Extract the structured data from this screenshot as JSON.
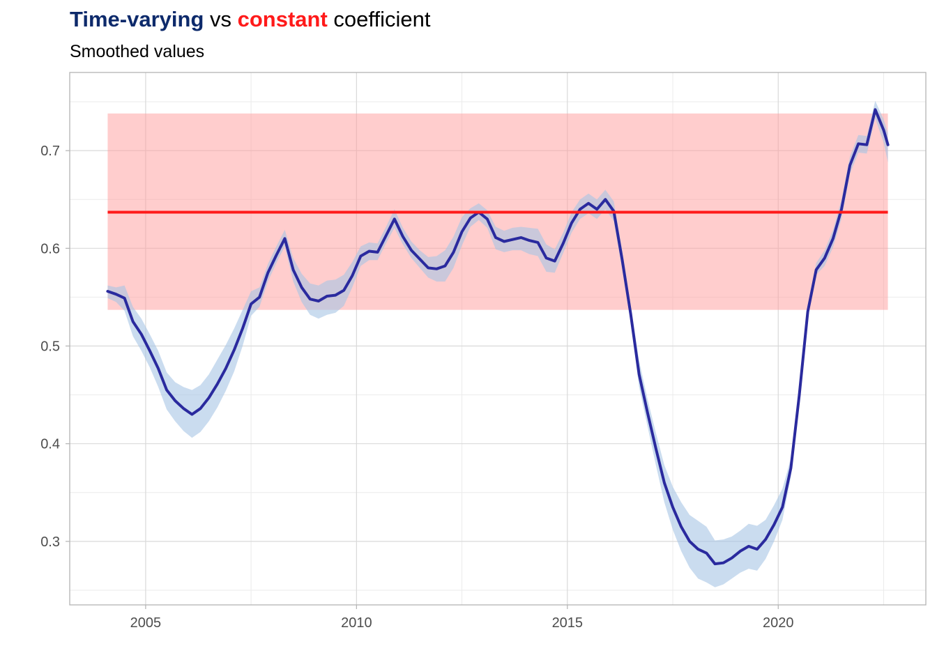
{
  "title": {
    "part1": "Time-varying",
    "part2": " vs ",
    "part3": "constant",
    "part4": " coefficient"
  },
  "subtitle": "Smoothed values",
  "colors": {
    "time_varying": "#0d2a6b",
    "constant": "#ff1a1a",
    "line": "#2a2a9e",
    "band_tv": "#a7c4e4",
    "band_const": "#ff9b9b"
  },
  "chart_data": {
    "type": "line",
    "title": "Time-varying vs constant coefficient",
    "subtitle": "Smoothed values",
    "xlabel": "",
    "ylabel": "",
    "xlim": [
      2003.2,
      2023.5
    ],
    "ylim": [
      0.235,
      0.78
    ],
    "x_ticks": [
      2005,
      2010,
      2015,
      2020
    ],
    "y_ticks": [
      0.3,
      0.4,
      0.5,
      0.6,
      0.7
    ],
    "grid": true,
    "constant": {
      "value": 0.637,
      "lower": 0.537,
      "upper": 0.738,
      "x_start": 2004.1,
      "x_end": 2022.6
    },
    "series": [
      {
        "x": [
          2004.1,
          2004.3,
          2004.5,
          2004.7,
          2004.9,
          2005.1,
          2005.3,
          2005.5,
          2005.7,
          2005.9,
          2006.1,
          2006.3,
          2006.5,
          2006.7,
          2006.9,
          2007.1,
          2007.3,
          2007.5,
          2007.7,
          2007.9,
          2008.1,
          2008.3,
          2008.5,
          2008.7,
          2008.9,
          2009.1,
          2009.3,
          2009.5,
          2009.7,
          2009.9,
          2010.1,
          2010.3,
          2010.5,
          2010.7,
          2010.9,
          2011.1,
          2011.3,
          2011.5,
          2011.7,
          2011.9,
          2012.1,
          2012.3,
          2012.5,
          2012.7,
          2012.9,
          2013.1,
          2013.3,
          2013.5,
          2013.7,
          2013.9,
          2014.1,
          2014.3,
          2014.5,
          2014.7,
          2014.9,
          2015.1,
          2015.3,
          2015.5,
          2015.7,
          2015.9,
          2016.1,
          2016.3,
          2016.5,
          2016.7,
          2016.9,
          2017.1,
          2017.3,
          2017.5,
          2017.7,
          2017.9,
          2018.1,
          2018.3,
          2018.5,
          2018.7,
          2018.9,
          2019.1,
          2019.3,
          2019.5,
          2019.7,
          2019.9,
          2020.1,
          2020.3,
          2020.5,
          2020.7,
          2020.9,
          2021.1,
          2021.3,
          2021.5,
          2021.7,
          2021.9,
          2022.1,
          2022.3,
          2022.5,
          2022.6
        ],
        "values": [
          0.556,
          0.553,
          0.549,
          0.525,
          0.512,
          0.495,
          0.477,
          0.455,
          0.444,
          0.436,
          0.43,
          0.436,
          0.447,
          0.461,
          0.477,
          0.496,
          0.518,
          0.543,
          0.55,
          0.575,
          0.593,
          0.61,
          0.578,
          0.56,
          0.548,
          0.546,
          0.551,
          0.552,
          0.557,
          0.572,
          0.592,
          0.597,
          0.596,
          0.613,
          0.63,
          0.612,
          0.598,
          0.589,
          0.58,
          0.579,
          0.582,
          0.596,
          0.617,
          0.631,
          0.637,
          0.63,
          0.611,
          0.607,
          0.609,
          0.611,
          0.608,
          0.606,
          0.59,
          0.587,
          0.605,
          0.626,
          0.64,
          0.646,
          0.64,
          0.65,
          0.638,
          0.588,
          0.533,
          0.471,
          0.432,
          0.395,
          0.36,
          0.335,
          0.315,
          0.3,
          0.292,
          0.288,
          0.277,
          0.278,
          0.283,
          0.29,
          0.295,
          0.292,
          0.302,
          0.317,
          0.335,
          0.375,
          0.45,
          0.535,
          0.578,
          0.59,
          0.61,
          0.64,
          0.685,
          0.707,
          0.706,
          0.742,
          0.721,
          0.706
        ],
        "lower": [
          0.549,
          0.545,
          0.536,
          0.51,
          0.495,
          0.478,
          0.458,
          0.435,
          0.423,
          0.413,
          0.406,
          0.412,
          0.423,
          0.437,
          0.454,
          0.474,
          0.5,
          0.531,
          0.54,
          0.566,
          0.585,
          0.602,
          0.566,
          0.545,
          0.532,
          0.528,
          0.532,
          0.534,
          0.541,
          0.56,
          0.582,
          0.588,
          0.588,
          0.605,
          0.621,
          0.604,
          0.59,
          0.58,
          0.57,
          0.566,
          0.566,
          0.58,
          0.603,
          0.622,
          0.629,
          0.621,
          0.599,
          0.596,
          0.598,
          0.598,
          0.594,
          0.592,
          0.576,
          0.575,
          0.595,
          0.616,
          0.63,
          0.636,
          0.63,
          0.64,
          0.628,
          0.578,
          0.525,
          0.458,
          0.418,
          0.378,
          0.34,
          0.312,
          0.29,
          0.273,
          0.262,
          0.258,
          0.253,
          0.256,
          0.262,
          0.268,
          0.272,
          0.27,
          0.282,
          0.3,
          0.322,
          0.366,
          0.444,
          0.53,
          0.573,
          0.582,
          0.601,
          0.63,
          0.676,
          0.698,
          0.697,
          0.733,
          0.708,
          0.688
        ],
        "upper": [
          0.562,
          0.56,
          0.562,
          0.54,
          0.528,
          0.512,
          0.495,
          0.473,
          0.463,
          0.458,
          0.455,
          0.46,
          0.471,
          0.486,
          0.501,
          0.518,
          0.537,
          0.556,
          0.56,
          0.584,
          0.602,
          0.619,
          0.59,
          0.574,
          0.564,
          0.562,
          0.567,
          0.568,
          0.573,
          0.586,
          0.602,
          0.606,
          0.605,
          0.622,
          0.64,
          0.621,
          0.607,
          0.598,
          0.591,
          0.592,
          0.598,
          0.612,
          0.632,
          0.641,
          0.646,
          0.639,
          0.622,
          0.618,
          0.621,
          0.622,
          0.621,
          0.62,
          0.604,
          0.599,
          0.616,
          0.637,
          0.65,
          0.656,
          0.65,
          0.66,
          0.648,
          0.598,
          0.542,
          0.485,
          0.446,
          0.411,
          0.378,
          0.356,
          0.34,
          0.327,
          0.321,
          0.315,
          0.301,
          0.302,
          0.305,
          0.311,
          0.318,
          0.316,
          0.322,
          0.337,
          0.354,
          0.385,
          0.457,
          0.541,
          0.585,
          0.598,
          0.619,
          0.65,
          0.694,
          0.716,
          0.715,
          0.751,
          0.732,
          0.718
        ]
      }
    ]
  }
}
